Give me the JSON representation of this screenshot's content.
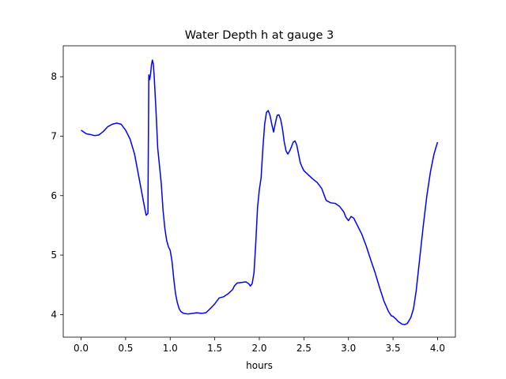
{
  "chart_data": {
    "type": "line",
    "title": "Water Depth h at gauge 3",
    "xlabel": "hours",
    "ylabel": "",
    "xlim": [
      -0.2,
      4.2
    ],
    "ylim": [
      3.62,
      8.52
    ],
    "xticks": [
      0.0,
      0.5,
      1.0,
      1.5,
      2.0,
      2.5,
      3.0,
      3.5,
      4.0
    ],
    "xtick_labels": [
      "0.0",
      "0.5",
      "1.0",
      "1.5",
      "2.0",
      "2.5",
      "3.0",
      "3.5",
      "4.0"
    ],
    "yticks": [
      4,
      5,
      6,
      7,
      8
    ],
    "ytick_labels": [
      "4",
      "5",
      "6",
      "7",
      "8"
    ],
    "grid": false,
    "series": [
      {
        "color": "#0000ff",
        "x": [
          0.0,
          0.03,
          0.06,
          0.1,
          0.15,
          0.2,
          0.25,
          0.3,
          0.35,
          0.4,
          0.45,
          0.5,
          0.55,
          0.6,
          0.65,
          0.7,
          0.73,
          0.75,
          0.76,
          0.77,
          0.78,
          0.79,
          0.8,
          0.81,
          0.82,
          0.84,
          0.86,
          0.88,
          0.9,
          0.92,
          0.94,
          0.96,
          0.98,
          1.0,
          1.02,
          1.04,
          1.06,
          1.08,
          1.1,
          1.12,
          1.15,
          1.2,
          1.25,
          1.3,
          1.35,
          1.4,
          1.45,
          1.5,
          1.55,
          1.6,
          1.65,
          1.7,
          1.72,
          1.75,
          1.8,
          1.85,
          1.88,
          1.9,
          1.92,
          1.94,
          1.96,
          1.98,
          2.0,
          2.02,
          2.04,
          2.06,
          2.08,
          2.1,
          2.12,
          2.14,
          2.16,
          2.18,
          2.2,
          2.22,
          2.24,
          2.26,
          2.28,
          2.3,
          2.32,
          2.34,
          2.36,
          2.38,
          2.4,
          2.42,
          2.44,
          2.46,
          2.48,
          2.5,
          2.55,
          2.6,
          2.65,
          2.7,
          2.75,
          2.8,
          2.85,
          2.9,
          2.95,
          2.97,
          3.0,
          3.03,
          3.06,
          3.1,
          3.15,
          3.2,
          3.25,
          3.3,
          3.35,
          3.4,
          3.45,
          3.48,
          3.5,
          3.53,
          3.56,
          3.6,
          3.63,
          3.66,
          3.7,
          3.73,
          3.76,
          3.8,
          3.84,
          3.88,
          3.92,
          3.96,
          4.0
        ],
        "y": [
          7.1,
          7.07,
          7.04,
          7.03,
          7.01,
          7.02,
          7.08,
          7.16,
          7.2,
          7.22,
          7.2,
          7.1,
          6.95,
          6.7,
          6.3,
          5.9,
          5.67,
          5.7,
          8.03,
          7.95,
          8.05,
          8.2,
          8.28,
          8.22,
          8.02,
          7.45,
          6.8,
          6.5,
          6.2,
          5.75,
          5.45,
          5.25,
          5.14,
          5.08,
          4.9,
          4.6,
          4.35,
          4.2,
          4.1,
          4.05,
          4.02,
          4.01,
          4.02,
          4.03,
          4.02,
          4.03,
          4.1,
          4.18,
          4.28,
          4.3,
          4.35,
          4.42,
          4.48,
          4.53,
          4.54,
          4.55,
          4.52,
          4.48,
          4.52,
          4.7,
          5.2,
          5.8,
          6.1,
          6.3,
          6.8,
          7.2,
          7.4,
          7.43,
          7.35,
          7.2,
          7.07,
          7.22,
          7.35,
          7.36,
          7.28,
          7.12,
          6.9,
          6.75,
          6.7,
          6.75,
          6.82,
          6.9,
          6.92,
          6.85,
          6.7,
          6.55,
          6.48,
          6.42,
          6.35,
          6.28,
          6.22,
          6.12,
          5.92,
          5.88,
          5.87,
          5.82,
          5.72,
          5.64,
          5.58,
          5.65,
          5.62,
          5.5,
          5.35,
          5.15,
          4.92,
          4.7,
          4.45,
          4.22,
          4.05,
          3.98,
          3.97,
          3.93,
          3.88,
          3.84,
          3.83,
          3.85,
          3.95,
          4.1,
          4.4,
          4.95,
          5.5,
          6.0,
          6.4,
          6.7,
          6.9
        ]
      }
    ]
  }
}
